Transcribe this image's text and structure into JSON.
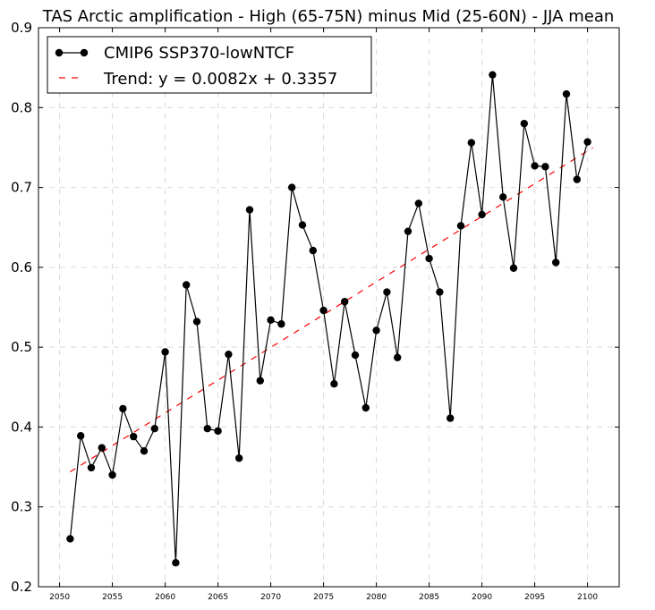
{
  "chart_data": {
    "type": "line",
    "title": "TAS Arctic amplification - High (65-75N) minus Mid (25-60N) - JJA mean",
    "xlabel": "",
    "ylabel": "",
    "xlim": [
      2048,
      2103
    ],
    "ylim": [
      0.2,
      0.9
    ],
    "grid": true,
    "legend_position": "top-left",
    "x_ticks": [
      2050,
      2055,
      2060,
      2065,
      2070,
      2075,
      2080,
      2085,
      2090,
      2095,
      2100
    ],
    "y_ticks": [
      0.2,
      0.3,
      0.4,
      0.5,
      0.6,
      0.7,
      0.8,
      0.9
    ],
    "x": [
      2051,
      2052,
      2053,
      2054,
      2055,
      2056,
      2057,
      2058,
      2059,
      2060,
      2061,
      2062,
      2063,
      2064,
      2065,
      2066,
      2067,
      2068,
      2069,
      2070,
      2071,
      2072,
      2073,
      2074,
      2075,
      2076,
      2077,
      2078,
      2079,
      2080,
      2081,
      2082,
      2083,
      2084,
      2085,
      2086,
      2087,
      2088,
      2089,
      2090,
      2091,
      2092,
      2093,
      2094,
      2095,
      2096,
      2097,
      2098,
      2099,
      2100
    ],
    "series": [
      {
        "name": "CMIP6 SSP370-lowNTCF",
        "color": "#000000",
        "values": [
          0.26,
          0.389,
          0.349,
          0.374,
          0.34,
          0.423,
          0.388,
          0.37,
          0.398,
          0.494,
          0.23,
          0.578,
          0.532,
          0.398,
          0.395,
          0.491,
          0.361,
          0.672,
          0.458,
          0.534,
          0.529,
          0.7,
          0.653,
          0.621,
          0.546,
          0.454,
          0.557,
          0.49,
          0.424,
          0.521,
          0.569,
          0.487,
          0.645,
          0.68,
          0.611,
          0.569,
          0.411,
          0.652,
          0.756,
          0.666,
          0.841,
          0.688,
          0.599,
          0.78,
          0.727,
          0.726,
          0.606,
          0.817,
          0.71,
          0.757
        ]
      }
    ],
    "trend": {
      "name": "Trend: y = 0.0082x + 0.3357",
      "color": "#ff0000",
      "slope": 0.0082,
      "intercept": 0.3357,
      "x_start": 2051,
      "x_end": 2100.5,
      "x_origin": 2050
    }
  }
}
